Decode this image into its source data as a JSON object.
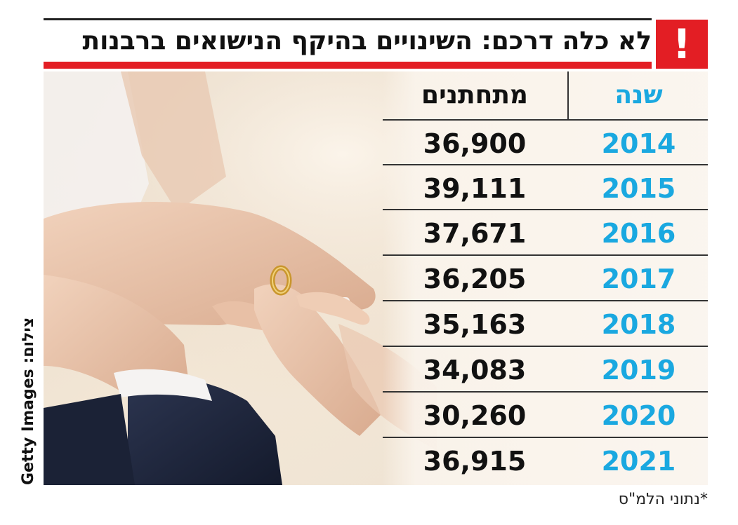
{
  "title": "לא כלה דרכם: השינויים בהיקף הנישואים ברבנות",
  "alert_symbol": "!",
  "credit": "צילום: Getty Images",
  "source_note": "*נתוני הלמ\"ס",
  "colors": {
    "accent_red": "#e31e24",
    "year_blue": "#1aa8e0",
    "text_dark": "#111111"
  },
  "chart_data": {
    "type": "table",
    "title": "לא כלה דרכם: השינויים בהיקף הנישואים ברבנות",
    "columns": [
      "שנה",
      "מתחתנים"
    ],
    "rows": [
      {
        "year": "2014",
        "count": "36,900"
      },
      {
        "year": "2015",
        "count": "39,111"
      },
      {
        "year": "2016",
        "count": "37,671"
      },
      {
        "year": "2017",
        "count": "36,205"
      },
      {
        "year": "2018",
        "count": "35,163"
      },
      {
        "year": "2019",
        "count": "34,083"
      },
      {
        "year": "2020",
        "count": "30,260"
      },
      {
        "year": "2021",
        "count": "36,915"
      }
    ]
  }
}
